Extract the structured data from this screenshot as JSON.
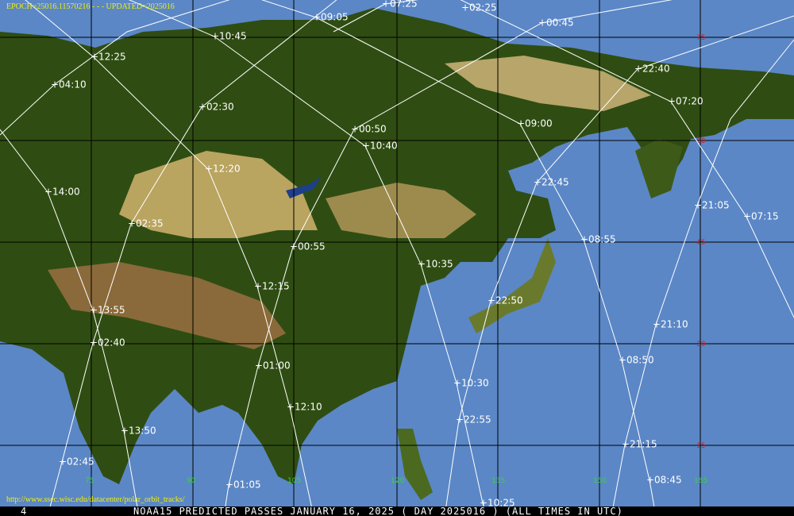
{
  "header": {
    "epoch": "EPOCH=25016.11570216 - - - UPDATED=2025016"
  },
  "footer": {
    "page": "4",
    "caption": "NOAA15 PREDICTED PASSES JANUARY 16, 2025 ( DAY 2025016 ) (ALL TIMES IN UTC)",
    "url": "http://www.ssec.wisc.edu/datacenter/polar_orbit_tracks/"
  },
  "longitude_labels": [
    "75",
    "90",
    "105",
    "120",
    "135",
    "150",
    "165"
  ],
  "latitude_labels": [
    "75",
    "60",
    "45",
    "30",
    "15"
  ],
  "pass_times": [
    "07:25",
    "02:25",
    "09:05",
    "00:45",
    "10:45",
    "12:25",
    "22:40",
    "04:10",
    "07:20",
    "02:30",
    "00:50",
    "09:00",
    "10:40",
    "12:20",
    "22:45",
    "14:00",
    "21:05",
    "07:15",
    "02:35",
    "08:55",
    "00:55",
    "10:35",
    "12:15",
    "22:50",
    "13:55",
    "21:10",
    "02:40",
    "08:50",
    "01:00",
    "10:30",
    "12:10",
    "22:55",
    "13:50",
    "21:15",
    "02:45",
    "08:45",
    "01:05",
    "10:25"
  ]
}
